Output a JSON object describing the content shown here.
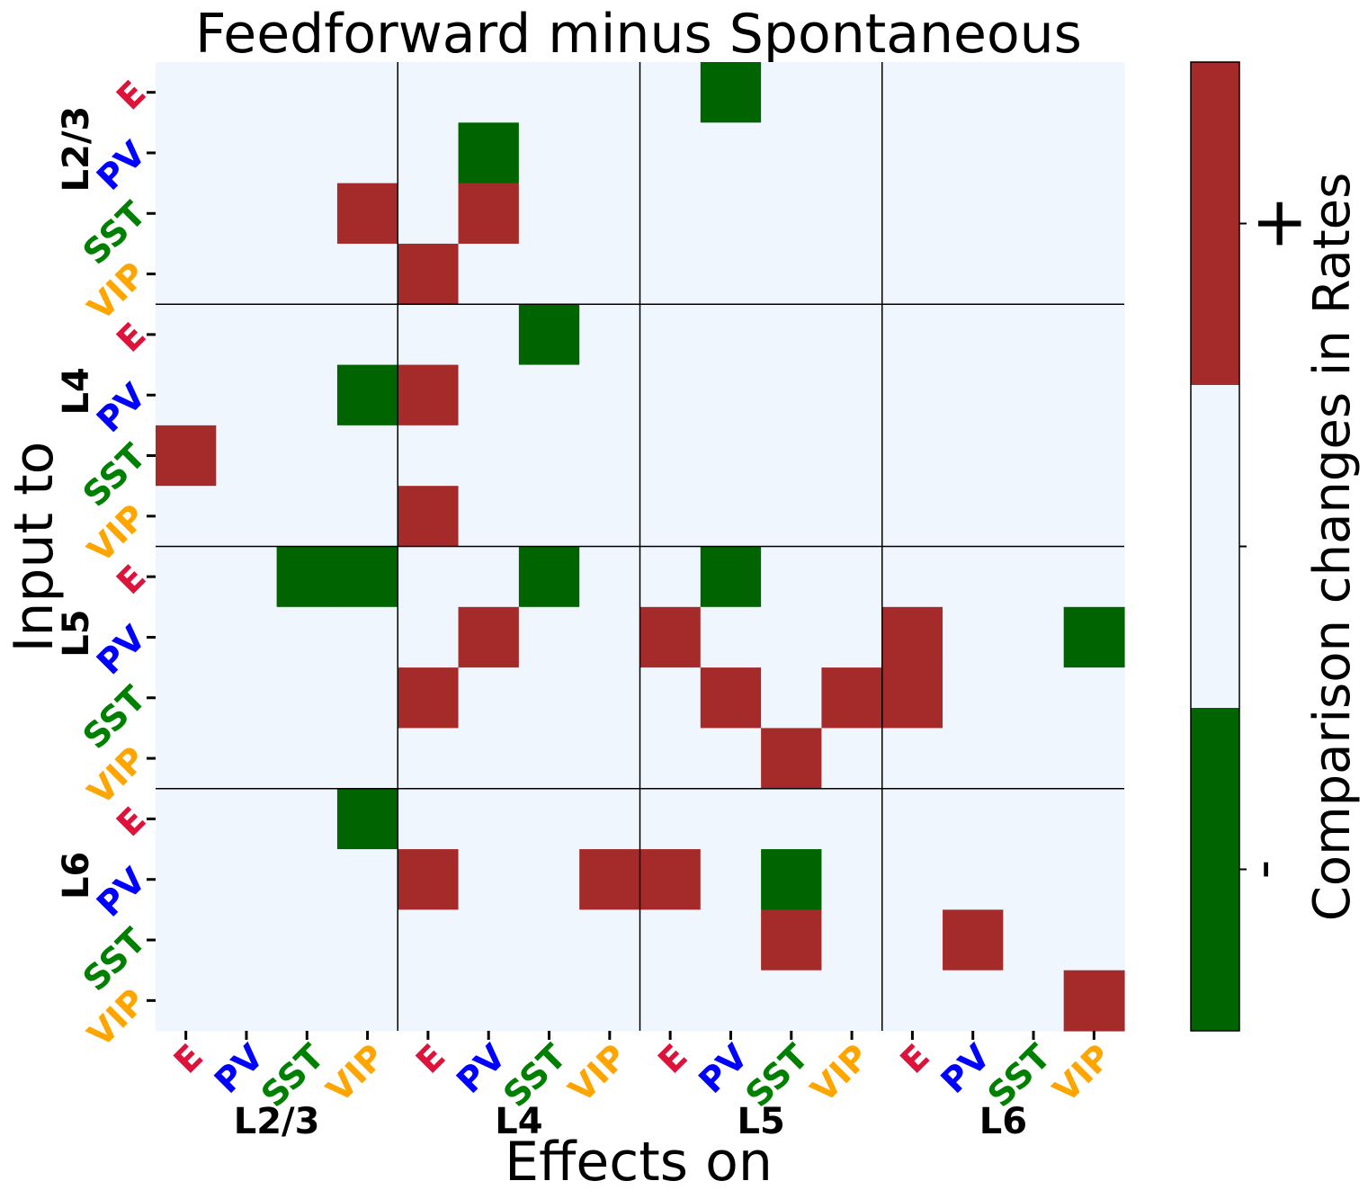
{
  "chart_data": {
    "type": "heatmap",
    "title": "Feedforward minus Spontaneous",
    "xlabel": "Effects on",
    "ylabel": "Input to",
    "layers": [
      "L2/3",
      "L4",
      "L5",
      "L6"
    ],
    "cell_types": [
      "E",
      "PV",
      "SST",
      "VIP"
    ],
    "x_tick_labels": [
      "E",
      "PV",
      "SST",
      "VIP",
      "E",
      "PV",
      "SST",
      "VIP",
      "E",
      "PV",
      "SST",
      "VIP",
      "E",
      "PV",
      "SST",
      "VIP"
    ],
    "y_tick_labels": [
      "E",
      "PV",
      "SST",
      "VIP",
      "E",
      "PV",
      "SST",
      "VIP",
      "E",
      "PV",
      "SST",
      "VIP",
      "E",
      "PV",
      "SST",
      "VIP"
    ],
    "colorbar": {
      "label": "Comparison changes in Rates",
      "tick_labels": [
        "-",
        "+"
      ],
      "levels": [
        -1,
        0,
        1
      ],
      "colors": [
        "#006400",
        "#eff6fe",
        "#a52a2a"
      ]
    },
    "values": [
      [
        0,
        0,
        0,
        0,
        0,
        0,
        0,
        0,
        0,
        -1,
        0,
        0,
        0,
        0,
        0,
        0
      ],
      [
        0,
        0,
        0,
        0,
        0,
        -1,
        0,
        0,
        0,
        0,
        0,
        0,
        0,
        0,
        0,
        0
      ],
      [
        0,
        0,
        0,
        1,
        0,
        1,
        0,
        0,
        0,
        0,
        0,
        0,
        0,
        0,
        0,
        0
      ],
      [
        0,
        0,
        0,
        0,
        1,
        0,
        0,
        0,
        0,
        0,
        0,
        0,
        0,
        0,
        0,
        0
      ],
      [
        0,
        0,
        0,
        0,
        0,
        0,
        -1,
        0,
        0,
        0,
        0,
        0,
        0,
        0,
        0,
        0
      ],
      [
        0,
        0,
        0,
        -1,
        1,
        0,
        0,
        0,
        0,
        0,
        0,
        0,
        0,
        0,
        0,
        0
      ],
      [
        1,
        0,
        0,
        0,
        0,
        0,
        0,
        0,
        0,
        0,
        0,
        0,
        0,
        0,
        0,
        0
      ],
      [
        0,
        0,
        0,
        0,
        1,
        0,
        0,
        0,
        0,
        0,
        0,
        0,
        0,
        0,
        0,
        0
      ],
      [
        0,
        0,
        -1,
        -1,
        0,
        0,
        -1,
        0,
        0,
        -1,
        0,
        0,
        0,
        0,
        0,
        0
      ],
      [
        0,
        0,
        0,
        0,
        0,
        1,
        0,
        0,
        1,
        0,
        0,
        0,
        1,
        0,
        0,
        -1
      ],
      [
        0,
        0,
        0,
        0,
        1,
        0,
        0,
        0,
        0,
        1,
        0,
        1,
        1,
        0,
        0,
        0
      ],
      [
        0,
        0,
        0,
        0,
        0,
        0,
        0,
        0,
        0,
        0,
        1,
        0,
        0,
        0,
        0,
        0
      ],
      [
        0,
        0,
        0,
        -1,
        0,
        0,
        0,
        0,
        0,
        0,
        0,
        0,
        0,
        0,
        0,
        0
      ],
      [
        0,
        0,
        0,
        0,
        1,
        0,
        0,
        1,
        1,
        0,
        -1,
        0,
        0,
        0,
        0,
        0
      ],
      [
        0,
        0,
        0,
        0,
        0,
        0,
        0,
        0,
        0,
        0,
        1,
        0,
        0,
        1,
        0,
        0
      ],
      [
        0,
        0,
        0,
        0,
        0,
        0,
        0,
        0,
        0,
        0,
        0,
        0,
        0,
        0,
        0,
        1
      ]
    ]
  },
  "type_colors": {
    "E": "#dc143c",
    "PV": "#0000ff",
    "SST": "#008000",
    "VIP": "#ffa500"
  }
}
